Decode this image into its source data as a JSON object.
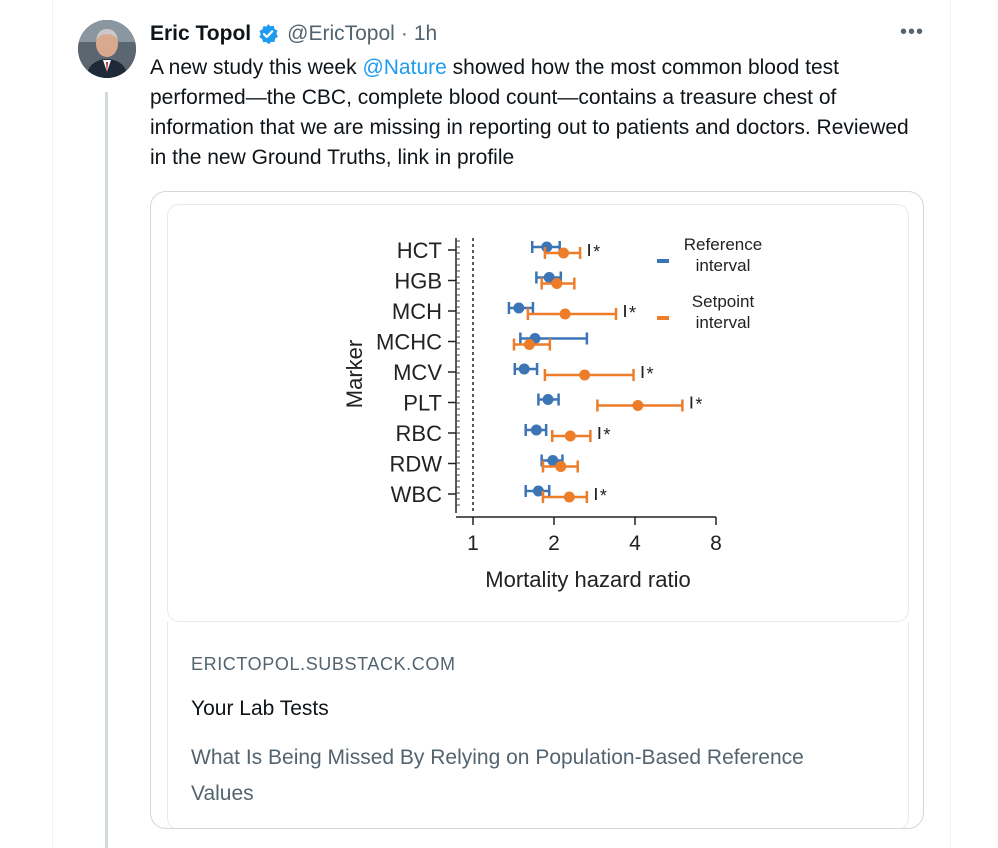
{
  "tweet": {
    "author_name": "Eric Topol",
    "handle": "@EricTopol",
    "separator": "·",
    "time": "1h",
    "more_label": "•••",
    "text_before": "A new study this week ",
    "mention": "@Nature",
    "text_after": " showed how the most common blood test performed—the CBC, complete blood count—contains a treasure chest of information that we are missing in reporting out to patients and doctors. Reviewed in the new Ground Truths, link in profile"
  },
  "card": {
    "domain": "ERICTOPOL.SUBSTACK.COM",
    "title": "Your Lab Tests",
    "description": "What Is Being Missed By Relying on Population-Based Reference Values"
  },
  "colors": {
    "reference": "#3b75b5",
    "setpoint": "#ee7d2a",
    "link": "#1d9bf0",
    "verified": "#1d9bf0"
  },
  "chart_data": {
    "type": "scatter",
    "ylabel": "Marker",
    "xlabel": "Mortality hazard ratio",
    "x_scale": "log2",
    "xlim": [
      1,
      8
    ],
    "x_ticks": [
      1,
      2,
      4,
      8
    ],
    "reference_line": 1,
    "categories": [
      "HCT",
      "HGB",
      "MCH",
      "MCHC",
      "MCV",
      "PLT",
      "RBC",
      "RDW",
      "WBC"
    ],
    "legend_placement": "top-right",
    "significance_marker": "*",
    "series": [
      {
        "name": "Reference interval",
        "color": "#3b75b5",
        "estimates": [
          1.88,
          1.92,
          1.48,
          1.7,
          1.55,
          1.9,
          1.72,
          1.98,
          1.75
        ],
        "lower": [
          1.66,
          1.72,
          1.36,
          1.5,
          1.43,
          1.75,
          1.57,
          1.8,
          1.57
        ],
        "upper": [
          2.1,
          2.12,
          1.67,
          2.65,
          1.73,
          2.08,
          1.87,
          2.15,
          1.92
        ]
      },
      {
        "name": "Setpoint interval",
        "color": "#ee7d2a",
        "estimates": [
          2.17,
          2.05,
          2.2,
          1.62,
          2.6,
          4.1,
          2.3,
          2.12,
          2.28
        ],
        "lower": [
          1.85,
          1.8,
          1.6,
          1.42,
          1.85,
          2.9,
          1.97,
          1.82,
          1.82
        ],
        "upper": [
          2.5,
          2.38,
          3.4,
          1.93,
          3.95,
          6.0,
          2.73,
          2.45,
          2.65
        ],
        "significant": [
          true,
          false,
          true,
          false,
          true,
          true,
          true,
          false,
          true
        ]
      }
    ]
  }
}
